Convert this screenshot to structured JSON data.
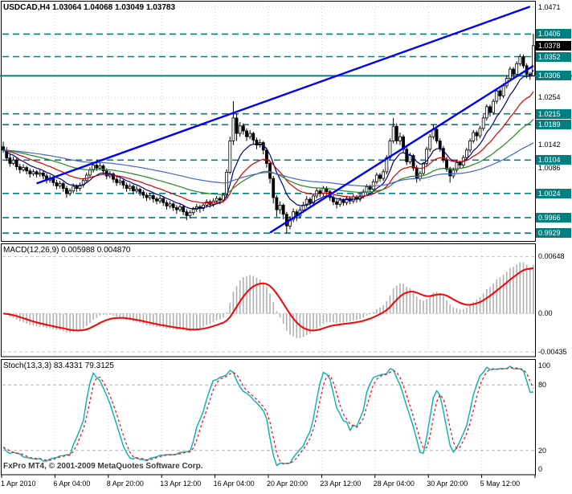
{
  "window": {
    "symbol": "USDCAD",
    "timeframe": "H4"
  },
  "watermark": "FxPro MT4, © 2001-2009 MetaQuotes Software Corp.",
  "colors": {
    "background": "#ffffff",
    "foreground": "#000000",
    "grid": "#d0d0d0",
    "level_teal": "#008080",
    "trend_blue": "#0000ff",
    "bull_body": "#ffffff",
    "bear_body": "#000000",
    "macd_histogram": "#b0b0b0",
    "macd_signal": "#ff0000",
    "stoch_main": "#00b3b3",
    "stoch_signal": "#ff0000",
    "current_label_bg": "#000000",
    "scale_label_fg": "#ffffff"
  },
  "chart_data": [
    {
      "type": "candlestick",
      "title_text": "USDCAD,H4 1.03064 1.04068 1.03049 1.03783",
      "symbol": "USDCAD",
      "timeframe": "H4",
      "ohlc_current": {
        "open": 1.03064,
        "high": 1.04068,
        "low": 1.03049,
        "close": 1.03783
      },
      "current_price": 1.0378,
      "current_price_label": "1.0378",
      "y_axis": {
        "range": [
          0.9912,
          1.0482
        ],
        "plain_labels": [
          "1.0471",
          "1.0254",
          "1.0142",
          "1.0086"
        ],
        "plain_values": [
          1.0471,
          1.0254,
          1.0142,
          1.0086
        ]
      },
      "x_axis": {
        "labels": [
          "1 Apr 2010",
          "6 Apr 04:00",
          "8 Apr 20:00",
          "13 Apr 12:00",
          "16 Apr 04:00",
          "20 Apr 20:00",
          "23 Apr 12:00",
          "28 Apr 04:00",
          "30 Apr 20:00",
          "5 May 12:00"
        ],
        "bars_per_gridline": 16
      },
      "levels": [
        {
          "price": 1.0406,
          "label": "1.0406",
          "style": "dashed"
        },
        {
          "price": 1.0352,
          "label": "1.0352",
          "style": "dashed"
        },
        {
          "price": 1.0306,
          "label": "1.0306",
          "style": "solid",
          "full_width": true
        },
        {
          "price": 1.0215,
          "label": "1.0215",
          "style": "dashed"
        },
        {
          "price": 1.0189,
          "label": "1.0189",
          "style": "dashed"
        },
        {
          "price": 1.0104,
          "label": "1.0104",
          "style": "dashed"
        },
        {
          "price": 1.0024,
          "label": "1.0024",
          "style": "dashed"
        },
        {
          "price": 0.9966,
          "label": "0.9966",
          "style": "dashed"
        },
        {
          "price": 0.9929,
          "label": "0.9929",
          "style": "dashed"
        }
      ],
      "trend_lines": [
        {
          "from_bar": 10,
          "from_price": 1.0048,
          "to_bar": 158,
          "to_price": 1.0472
        },
        {
          "from_bar": 80,
          "from_price": 0.993,
          "to_bar": 159,
          "to_price": 1.033
        }
      ],
      "moving_averages": [
        {
          "period": 9,
          "color": "#000080"
        },
        {
          "period": 21,
          "color": "#dd0000"
        },
        {
          "period": 45,
          "color": "#228b22"
        },
        {
          "period": 90,
          "color": "#4466cc"
        }
      ],
      "candles": [
        [
          1.0136,
          1.0148,
          1.0122,
          1.0128
        ],
        [
          1.0128,
          1.0135,
          1.0102,
          1.0109
        ],
        [
          1.0109,
          1.0118,
          1.0088,
          1.0096
        ],
        [
          1.0096,
          1.0112,
          1.0092,
          1.0104
        ],
        [
          1.0104,
          1.0109,
          1.008,
          1.0088
        ],
        [
          1.0088,
          1.0095,
          1.0072,
          1.0081
        ],
        [
          1.0081,
          1.0094,
          1.0076,
          1.0086
        ],
        [
          1.0086,
          1.009,
          1.007,
          1.0078
        ],
        [
          1.0078,
          1.0084,
          1.0062,
          1.0071
        ],
        [
          1.0071,
          1.0082,
          1.0066,
          1.0076
        ],
        [
          1.0076,
          1.008,
          1.0062,
          1.007
        ],
        [
          1.007,
          1.0081,
          1.0064,
          1.0073
        ],
        [
          1.0073,
          1.0078,
          1.0058,
          1.0066
        ],
        [
          1.0066,
          1.0072,
          1.0048,
          1.0056
        ],
        [
          1.0056,
          1.0068,
          1.005,
          1.0061
        ],
        [
          1.0061,
          1.0065,
          1.0042,
          1.005
        ],
        [
          1.005,
          1.0057,
          1.0034,
          1.0042
        ],
        [
          1.0042,
          1.0054,
          1.0036,
          1.0048
        ],
        [
          1.0048,
          1.0052,
          1.0028,
          1.0036
        ],
        [
          1.0036,
          1.0042,
          1.0014,
          1.0024
        ],
        [
          1.0024,
          1.0036,
          1.0018,
          1.003
        ],
        [
          1.003,
          1.0048,
          1.0024,
          1.0041
        ],
        [
          1.0041,
          1.0046,
          1.0028,
          1.0036
        ],
        [
          1.0036,
          1.005,
          1.003,
          1.0044
        ],
        [
          1.0044,
          1.006,
          1.0038,
          1.0055
        ],
        [
          1.0055,
          1.0074,
          1.005,
          1.0068
        ],
        [
          1.0068,
          1.0086,
          1.0062,
          1.008
        ],
        [
          1.008,
          1.01,
          1.0074,
          1.0092
        ],
        [
          1.0092,
          1.0105,
          1.0078,
          1.0085
        ],
        [
          1.0085,
          1.0098,
          1.008,
          1.009
        ],
        [
          1.009,
          1.0094,
          1.007,
          1.0078
        ],
        [
          1.0078,
          1.0084,
          1.0058,
          1.0066
        ],
        [
          1.0066,
          1.0078,
          1.006,
          1.0071
        ],
        [
          1.0071,
          1.0075,
          1.005,
          1.0058
        ],
        [
          1.0058,
          1.0064,
          1.0042,
          1.005
        ],
        [
          1.005,
          1.0061,
          1.0044,
          1.0054
        ],
        [
          1.0054,
          1.0058,
          1.0036,
          1.0044
        ],
        [
          1.0044,
          1.005,
          1.0028,
          1.0036
        ],
        [
          1.0036,
          1.0048,
          1.003,
          1.0041
        ],
        [
          1.0041,
          1.0045,
          1.0022,
          1.003
        ],
        [
          1.003,
          1.0042,
          1.0024,
          1.0034
        ],
        [
          1.0034,
          1.0038,
          1.0018,
          1.0027
        ],
        [
          1.0027,
          1.0032,
          1.0012,
          1.002
        ],
        [
          1.002,
          1.0026,
          1.0006,
          1.0014
        ],
        [
          1.0014,
          1.0026,
          1.0008,
          1.0019
        ],
        [
          1.0019,
          1.0023,
          1.0002,
          1.0011
        ],
        [
          1.0011,
          1.0016,
          0.9998,
          1.0006
        ],
        [
          1.0006,
          1.0018,
          1.0,
          1.0012
        ],
        [
          1.0012,
          1.0016,
          0.9994,
          1.0002
        ],
        [
          1.0002,
          1.0008,
          0.9985,
          0.9994
        ],
        [
          0.9994,
          1.0006,
          0.9988,
          0.9999
        ],
        [
          0.9999,
          1.0003,
          0.9982,
          0.999
        ],
        [
          0.999,
          0.9996,
          0.9975,
          0.9985
        ],
        [
          0.9985,
          0.9998,
          0.998,
          0.9992
        ],
        [
          0.9992,
          0.9996,
          0.9972,
          0.998
        ],
        [
          0.998,
          0.9986,
          0.996,
          0.9971
        ],
        [
          0.9971,
          0.9984,
          0.9964,
          0.9978
        ],
        [
          0.9978,
          0.9992,
          0.9972,
          0.9986
        ],
        [
          0.9986,
          0.9999,
          0.998,
          0.9992
        ],
        [
          0.9992,
          0.9997,
          0.9978,
          0.9988
        ],
        [
          0.9988,
          1.0002,
          0.9982,
          0.9996
        ],
        [
          0.9996,
          1.001,
          0.999,
          1.0004
        ],
        [
          1.0004,
          1.0009,
          0.999,
          0.9998
        ],
        [
          0.9998,
          1.0012,
          0.9992,
          1.0006
        ],
        [
          1.0006,
          1.0018,
          0.9998,
          1.0012
        ],
        [
          1.0012,
          1.0017,
          0.9998,
          1.0008
        ],
        [
          1.0008,
          1.0026,
          1.0002,
          1.002
        ],
        [
          1.002,
          1.0082,
          1.0014,
          1.0075
        ],
        [
          1.0075,
          1.016,
          1.007,
          1.015
        ],
        [
          1.015,
          1.0245,
          1.014,
          1.0205
        ],
        [
          1.0205,
          1.0215,
          1.015,
          1.0168
        ],
        [
          1.0168,
          1.0195,
          1.016,
          1.0186
        ],
        [
          1.0186,
          1.0192,
          1.0165,
          1.0174
        ],
        [
          1.0174,
          1.018,
          1.015,
          1.016
        ],
        [
          1.016,
          1.0176,
          1.0154,
          1.0168
        ],
        [
          1.0168,
          1.0172,
          1.0142,
          1.0152
        ],
        [
          1.0152,
          1.0158,
          1.013,
          1.014
        ],
        [
          1.014,
          1.0154,
          1.0134,
          1.0146
        ],
        [
          1.0146,
          1.015,
          1.0118,
          1.0128
        ],
        [
          1.0128,
          1.0134,
          1.0086,
          1.0096
        ],
        [
          1.0096,
          1.0102,
          1.0048,
          1.006
        ],
        [
          1.006,
          1.0066,
          1.0,
          1.0014
        ],
        [
          1.0014,
          1.002,
          0.9968,
          0.9985
        ],
        [
          0.9985,
          1.0005,
          0.9975,
          0.9996
        ],
        [
          0.9996,
          1.0,
          0.9962,
          0.9974
        ],
        [
          0.9974,
          0.998,
          0.9929,
          0.9946
        ],
        [
          0.9946,
          0.997,
          0.9938,
          0.9962
        ],
        [
          0.9962,
          0.9988,
          0.9955,
          0.998
        ],
        [
          0.998,
          0.9986,
          0.9958,
          0.997
        ],
        [
          0.997,
          0.9992,
          0.9964,
          0.9984
        ],
        [
          0.9984,
          1.0004,
          0.9978,
          0.9996
        ],
        [
          0.9996,
          1.0018,
          0.999,
          1.001
        ],
        [
          1.001,
          1.0015,
          0.9994,
          1.0002
        ],
        [
          1.0002,
          1.0024,
          0.9996,
          1.0018
        ],
        [
          1.0018,
          1.0038,
          1.0012,
          1.003
        ],
        [
          1.003,
          1.0035,
          1.0015,
          1.0024
        ],
        [
          1.0024,
          1.0042,
          1.0018,
          1.0036
        ],
        [
          1.0036,
          1.0041,
          1.002,
          1.0028
        ],
        [
          1.0028,
          1.0033,
          1.0006,
          1.0014
        ],
        [
          1.0014,
          1.002,
          0.9996,
          1.0004
        ],
        [
          1.0004,
          1.001,
          0.9988,
          0.9998
        ],
        [
          0.9998,
          1.0014,
          0.9992,
          1.0008
        ],
        [
          1.0008,
          1.0012,
          0.9994,
          1.0002
        ],
        [
          1.0002,
          1.0018,
          0.9996,
          1.0012
        ],
        [
          1.0012,
          1.0016,
          0.9998,
          1.0006
        ],
        [
          1.0006,
          1.0022,
          1.0,
          1.0016
        ],
        [
          1.0016,
          1.002,
          1.0002,
          1.001
        ],
        [
          1.001,
          1.0024,
          1.0004,
          1.0018
        ],
        [
          1.0018,
          1.0034,
          1.0012,
          1.0028
        ],
        [
          1.0028,
          1.0046,
          1.0022,
          1.004
        ],
        [
          1.004,
          1.0045,
          1.0026,
          1.0034
        ],
        [
          1.0034,
          1.0058,
          1.0028,
          1.0052
        ],
        [
          1.0052,
          1.0074,
          1.0046,
          1.0068
        ],
        [
          1.0068,
          1.0073,
          1.0052,
          1.006
        ],
        [
          1.006,
          1.0082,
          1.0054,
          1.0076
        ],
        [
          1.0076,
          1.0116,
          1.007,
          1.011
        ],
        [
          1.011,
          1.0156,
          1.0104,
          1.015
        ],
        [
          1.015,
          1.0205,
          1.0144,
          1.0185
        ],
        [
          1.0185,
          1.0192,
          1.0142,
          1.015
        ],
        [
          1.015,
          1.017,
          1.014,
          1.016
        ],
        [
          1.016,
          1.0165,
          1.0122,
          1.013
        ],
        [
          1.013,
          1.0138,
          1.0092,
          1.01
        ],
        [
          1.01,
          1.0122,
          1.0094,
          1.0115
        ],
        [
          1.0115,
          1.0119,
          1.0078,
          1.0085
        ],
        [
          1.0085,
          1.0092,
          1.005,
          1.006
        ],
        [
          1.006,
          1.0078,
          1.0054,
          1.0072
        ],
        [
          1.0072,
          1.01,
          1.0066,
          1.0096
        ],
        [
          1.0096,
          1.0136,
          1.009,
          1.013
        ],
        [
          1.013,
          1.0166,
          1.0124,
          1.016
        ],
        [
          1.016,
          1.019,
          1.0154,
          1.0178
        ],
        [
          1.0178,
          1.0184,
          1.0144,
          1.015
        ],
        [
          1.015,
          1.0156,
          1.0124,
          1.0132
        ],
        [
          1.0132,
          1.0138,
          1.0098,
          1.0105
        ],
        [
          1.0105,
          1.0112,
          1.0076,
          1.0082
        ],
        [
          1.0082,
          1.0088,
          1.005,
          1.0066
        ],
        [
          1.0066,
          1.0086,
          1.006,
          1.008
        ],
        [
          1.008,
          1.0104,
          1.0074,
          1.0098
        ],
        [
          1.0098,
          1.0103,
          1.0084,
          1.0092
        ],
        [
          1.0092,
          1.0116,
          1.0086,
          1.011
        ],
        [
          1.011,
          1.0134,
          1.0104,
          1.0128
        ],
        [
          1.0128,
          1.0156,
          1.0122,
          1.015
        ],
        [
          1.015,
          1.0176,
          1.0144,
          1.017
        ],
        [
          1.017,
          1.0175,
          1.015,
          1.0162
        ],
        [
          1.0162,
          1.0186,
          1.0156,
          1.018
        ],
        [
          1.018,
          1.0212,
          1.0174,
          1.0205
        ],
        [
          1.0205,
          1.0238,
          1.0199,
          1.0232
        ],
        [
          1.0232,
          1.0237,
          1.0208,
          1.0218
        ],
        [
          1.0218,
          1.0251,
          1.0212,
          1.0245
        ],
        [
          1.0245,
          1.0276,
          1.0239,
          1.027
        ],
        [
          1.027,
          1.0275,
          1.0248,
          1.0258
        ],
        [
          1.0258,
          1.0288,
          1.0252,
          1.0282
        ],
        [
          1.0282,
          1.0306,
          1.0276,
          1.03
        ],
        [
          1.03,
          1.0328,
          1.0294,
          1.0322
        ],
        [
          1.0322,
          1.0327,
          1.03,
          1.031
        ],
        [
          1.031,
          1.0341,
          1.0304,
          1.0335
        ],
        [
          1.0335,
          1.0358,
          1.0329,
          1.0352
        ],
        [
          1.0352,
          1.0357,
          1.0324,
          1.033
        ],
        [
          1.033,
          1.0336,
          1.03,
          1.031
        ],
        [
          1.031,
          1.0315,
          1.0296,
          1.0306
        ],
        [
          1.03064,
          1.04068,
          1.03049,
          1.03783
        ]
      ]
    },
    {
      "type": "macd",
      "title_text": "MACD(12,26,9) 0.005988 0.004870",
      "params": {
        "fast": 12,
        "slow": 26,
        "signal": 9
      },
      "current_values": [
        0.005988,
        0.00487
      ],
      "y_axis": {
        "range": [
          -0.0048,
          0.0078
        ],
        "labels": [
          "0.00648",
          "0.00",
          "-0.00435"
        ],
        "label_values": [
          0.00648,
          0,
          -0.00435
        ]
      }
    },
    {
      "type": "stochastic",
      "title_text": "Stoch(13,3,3) 83.4331 79.3125",
      "params": {
        "k": 13,
        "d": 3,
        "slowing": 3
      },
      "current_values": [
        83.4331,
        79.3125
      ],
      "y_axis": {
        "range": [
          0,
          100
        ],
        "labels": [
          "100",
          "80",
          "20",
          "0"
        ],
        "label_values": [
          100,
          80,
          20,
          0
        ],
        "levels": [
          80,
          20
        ]
      }
    }
  ]
}
